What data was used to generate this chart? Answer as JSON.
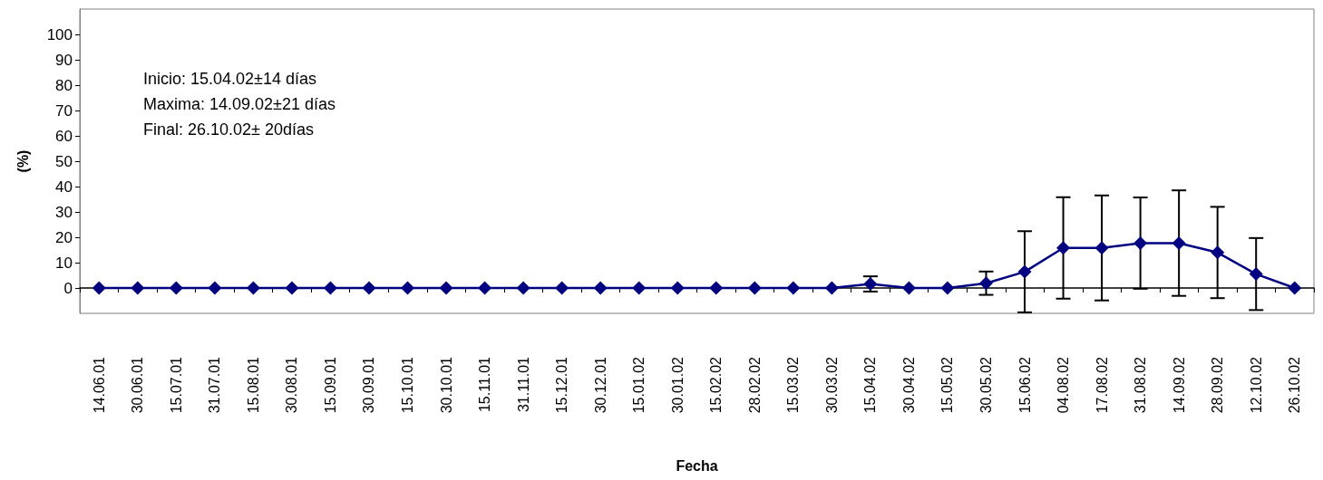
{
  "chart_data": {
    "type": "line",
    "xlabel": "Fecha",
    "ylabel": "(%)",
    "categories": [
      "14.06.01",
      "30.06.01",
      "15.07.01",
      "31.07.01",
      "15.08.01",
      "30.08.01",
      "15.09.01",
      "30.09.01",
      "15.10.01",
      "30.10.01",
      "15.11.01",
      "31.11.01",
      "15.12.01",
      "30.12.01",
      "15.01.02",
      "30.01.02",
      "15.02.02",
      "28.02.02",
      "15.03.02",
      "30.03.02",
      "15.04.02",
      "30.04.02",
      "15.05.02",
      "30.05.02",
      "15.06.02",
      "04.08.02",
      "17.08.02",
      "31.08.02",
      "14.09.02",
      "28.09.02",
      "12.10.02",
      "26.10.02"
    ],
    "series": [
      {
        "color": "#000080",
        "values": [
          0,
          0,
          0,
          0,
          0,
          0,
          0,
          0,
          0,
          0,
          0,
          0,
          0,
          0,
          0,
          0,
          0,
          0,
          0,
          0,
          1.6,
          0,
          0,
          1.9,
          6.4,
          15.8,
          15.8,
          17.7,
          17.7,
          14,
          5.5,
          0
        ],
        "errors": [
          null,
          null,
          null,
          null,
          null,
          null,
          null,
          null,
          null,
          null,
          null,
          null,
          null,
          null,
          null,
          null,
          null,
          null,
          null,
          null,
          3,
          null,
          null,
          4.6,
          16,
          20,
          20.7,
          18,
          20.8,
          18,
          14.2,
          null
        ]
      }
    ],
    "ylim": [
      -10,
      110
    ],
    "yticks": [
      0,
      10,
      20,
      30,
      40,
      50,
      60,
      70,
      80,
      90,
      100
    ],
    "marker": "diamond",
    "line_style": "solid",
    "annotations": [
      "Inicio: 15.04.02±14 días",
      "Maxima: 14.09.02±21 días",
      "Final: 26.10.02± 20días"
    ]
  }
}
